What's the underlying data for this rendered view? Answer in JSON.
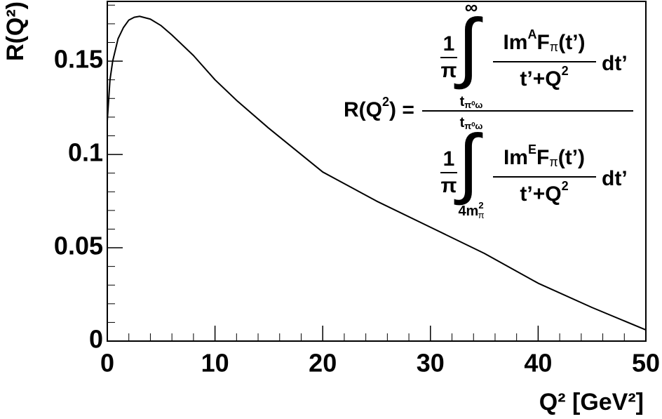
{
  "chart_data": {
    "type": "line",
    "x_label": "Q² [GeV²]",
    "y_label": "R(Q²)",
    "x": [
      0,
      0.25,
      0.5,
      1,
      1.5,
      2,
      2.5,
      3,
      4,
      5,
      6,
      8,
      10,
      12,
      15,
      20,
      25,
      30,
      35,
      40,
      45,
      50
    ],
    "values": [
      0.118,
      0.14,
      0.15,
      0.162,
      0.168,
      0.172,
      0.1735,
      0.174,
      0.1725,
      0.169,
      0.164,
      0.153,
      0.14,
      0.129,
      0.114,
      0.0906,
      0.075,
      0.061,
      0.047,
      0.031,
      0.018,
      0.006
    ],
    "color": "#000000",
    "xlim": [
      0,
      50
    ],
    "ylim": [
      0,
      0.182
    ],
    "xticks": [
      0,
      10,
      20,
      30,
      40,
      50
    ],
    "yticks": [
      0,
      0.05,
      0.1,
      0.15
    ],
    "annotation": {
      "lhs": [
        "R(Q",
        "2",
        ") ="
      ],
      "top": {
        "one": "1",
        "pi": "π",
        "integral": "∫",
        "upper": "∞",
        "lower": [
          "t",
          "π⁰ω"
        ],
        "num": [
          "Im",
          "A",
          "F",
          "π",
          "(t’)"
        ],
        "den": [
          "t’+Q",
          "2"
        ],
        "dt": "dt’"
      },
      "bottom": {
        "one": "1",
        "pi": "π",
        "integral": "∫",
        "upper": [
          "t",
          "π⁰ω"
        ],
        "lower": [
          "4m",
          "2",
          "π"
        ],
        "num": [
          "Im",
          "E",
          "F",
          "π",
          "(t’)"
        ],
        "den": [
          "t’+Q",
          "2"
        ],
        "dt": "dt’"
      }
    }
  }
}
